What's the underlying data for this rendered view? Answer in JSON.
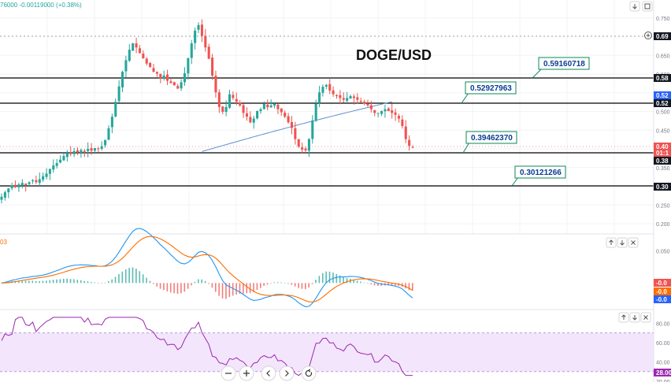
{
  "header": {
    "quote_text": "76000  -0.00119000 (+0.38%)"
  },
  "main_pane": {
    "title": "DOGE/USD",
    "y_ticks": [
      "0.750",
      "0.650",
      "0.600",
      "0.550",
      "0.500",
      "0.450",
      "0.400",
      "0.350",
      "0.300",
      "0.250",
      "0.200"
    ],
    "price_badges": [
      {
        "text": "0.69",
        "style": "dark"
      },
      {
        "text": "0.58",
        "style": "dark"
      },
      {
        "text": "0.52",
        "style": "blue"
      },
      {
        "text": "0.52",
        "style": "dark"
      },
      {
        "text": "0.40",
        "style": "red"
      },
      {
        "text": "01:1",
        "style": "red"
      },
      {
        "text": "0.38",
        "style": "dark"
      },
      {
        "text": "0.30",
        "style": "dark"
      }
    ],
    "level_labels": [
      "0.59160718",
      "0.52927963",
      "0.39462370",
      "0.30121266"
    ]
  },
  "macd_pane": {
    "label": "03",
    "y_ticks": [
      "0.050",
      "0.000"
    ],
    "badges": [
      {
        "text": "-0.0",
        "style": "red"
      },
      {
        "text": "-0.0",
        "style": "orange"
      },
      {
        "text": "-0.0",
        "style": "blue"
      }
    ]
  },
  "rsi_pane": {
    "y_ticks": [
      "80.00",
      "60.00",
      "40.00",
      "20.00"
    ],
    "badge": "28.00"
  },
  "toolbar_icons": [
    "minus-icon",
    "plus-icon",
    "chevron-left-icon",
    "chevron-right-icon",
    "reset-icon"
  ],
  "pane_control_icons": [
    "arrow-up-icon",
    "arrow-down-icon",
    "close-icon"
  ],
  "colors": {
    "up": "#26a69a",
    "down": "#ef5350",
    "level_label_border": "#0b8a55",
    "macd_line": "#2196f3",
    "signal_line": "#ff6d00",
    "rsi_line": "#9c27b0",
    "rsi_band": "#f3e5fb",
    "trendline": "#5b8fd1"
  },
  "chart_data": [
    {
      "type": "candlestick",
      "title": "DOGE/USD",
      "y_range": [
        0.2,
        0.76
      ],
      "horizontal_levels": [
        0.5916,
        0.5293,
        0.3946,
        0.3012
      ],
      "closes": [
        0.272,
        0.284,
        0.294,
        0.302,
        0.297,
        0.305,
        0.309,
        0.303,
        0.311,
        0.316,
        0.311,
        0.319,
        0.327,
        0.334,
        0.346,
        0.356,
        0.362,
        0.371,
        0.381,
        0.389,
        0.386,
        0.394,
        0.391,
        0.397,
        0.392,
        0.4,
        0.395,
        0.402,
        0.399,
        0.407,
        0.424,
        0.455,
        0.486,
        0.526,
        0.567,
        0.606,
        0.637,
        0.665,
        0.682,
        0.671,
        0.656,
        0.642,
        0.628,
        0.619,
        0.606,
        0.601,
        0.589,
        0.596,
        0.582,
        0.576,
        0.57,
        0.561,
        0.578,
        0.602,
        0.642,
        0.682,
        0.716,
        0.731,
        0.702,
        0.671,
        0.641,
        0.596,
        0.551,
        0.512,
        0.499,
        0.512,
        0.546,
        0.536,
        0.526,
        0.516,
        0.496,
        0.486,
        0.471,
        0.481,
        0.501,
        0.506,
        0.521,
        0.511,
        0.516,
        0.521,
        0.506,
        0.498,
        0.486,
        0.471,
        0.456,
        0.426,
        0.406,
        0.398,
        0.396,
        0.426,
        0.476,
        0.521,
        0.551,
        0.566,
        0.571,
        0.556,
        0.546,
        0.541,
        0.536,
        0.531,
        0.536,
        0.541,
        0.536,
        0.531,
        0.526,
        0.521,
        0.516,
        0.506,
        0.496,
        0.496,
        0.501,
        0.506,
        0.501,
        0.496,
        0.491,
        0.481,
        0.461,
        0.426,
        0.408,
        0.404
      ]
    },
    {
      "type": "line",
      "name": "MACD",
      "y_range": [
        -0.035,
        0.07
      ]
    },
    {
      "type": "line",
      "name": "RSI",
      "y_range": [
        20,
        90
      ],
      "band": [
        30,
        70
      ]
    }
  ]
}
